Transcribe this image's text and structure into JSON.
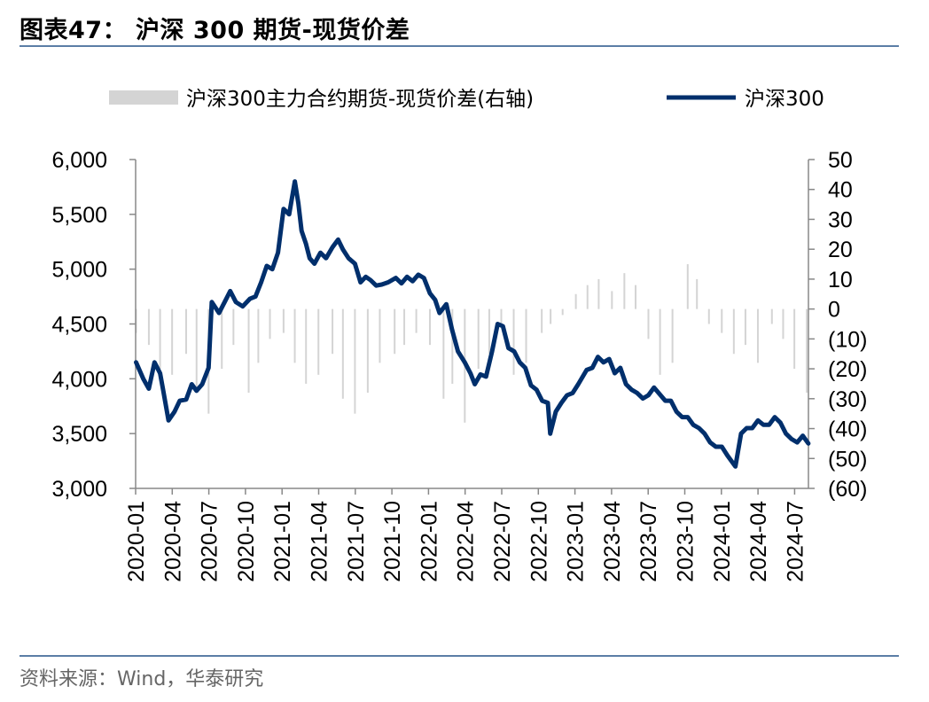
{
  "title": "图表47：  沪深 300 期货-现货价差",
  "source": "资料来源：Wind，华泰研究",
  "colors": {
    "line": "#002f6c",
    "bars": "#d4d4d4",
    "rule": "#5b7ea6",
    "axis": "#888888"
  },
  "chart_data": {
    "type": "line+bar",
    "legend_position": "top",
    "grid": false,
    "x_tick_labels": [
      "2020-01",
      "2020-04",
      "2020-07",
      "2020-10",
      "2021-01",
      "2021-04",
      "2021-07",
      "2021-10",
      "2022-01",
      "2022-04",
      "2022-07",
      "2022-10",
      "2023-01",
      "2023-04",
      "2023-07",
      "2023-10",
      "2024-01",
      "2024-04",
      "2024-07"
    ],
    "y_left": {
      "lim": [
        3000,
        6000
      ],
      "ticks": [
        3000,
        3500,
        4000,
        4500,
        5000,
        5500,
        6000
      ],
      "tick_labels": [
        "3,000",
        "3,500",
        "4,000",
        "4,500",
        "5,000",
        "5,500",
        "6,000"
      ]
    },
    "y_right": {
      "lim": [
        -60,
        50
      ],
      "ticks": [
        50,
        40,
        30,
        20,
        10,
        0,
        -10,
        -20,
        -30,
        -40,
        -50,
        -60
      ],
      "tick_labels": [
        "50",
        "40",
        "30",
        "20",
        "10",
        "0",
        "(10)",
        "(20)",
        "(30)",
        "(40)",
        "(50)",
        "(60)"
      ]
    },
    "series": [
      {
        "name": "沪深300主力合约期货-现货价差(右轴)",
        "kind": "bar",
        "axis": "right",
        "x": [
          "2020-01-02",
          "2020-02-03",
          "2020-03-02",
          "2020-04-01",
          "2020-05-06",
          "2020-06-01",
          "2020-07-01",
          "2020-08-03",
          "2020-09-01",
          "2020-10-09",
          "2020-11-02",
          "2020-12-01",
          "2021-01-04",
          "2021-02-01",
          "2021-03-01",
          "2021-04-01",
          "2021-05-06",
          "2021-06-01",
          "2021-07-01",
          "2021-08-02",
          "2021-09-01",
          "2021-10-08",
          "2021-11-01",
          "2021-12-01",
          "2022-01-04",
          "2022-02-07",
          "2022-03-01",
          "2022-04-01",
          "2022-05-05",
          "2022-06-01",
          "2022-07-01",
          "2022-08-01",
          "2022-09-01",
          "2022-10-10",
          "2022-11-01",
          "2022-12-01",
          "2023-01-03",
          "2023-02-01",
          "2023-03-01",
          "2023-04-03",
          "2023-05-04",
          "2023-06-01",
          "2023-07-03",
          "2023-08-01",
          "2023-09-01",
          "2023-10-09",
          "2023-11-01",
          "2023-12-01",
          "2024-01-02",
          "2024-02-01",
          "2024-03-01",
          "2024-04-01",
          "2024-05-06",
          "2024-06-03",
          "2024-07-01",
          "2024-08-01"
        ],
        "values": [
          -8,
          -12,
          -20,
          -22,
          -15,
          -28,
          -35,
          -20,
          -12,
          -28,
          -18,
          -10,
          -8,
          -18,
          -25,
          -22,
          -15,
          -30,
          -35,
          -28,
          -18,
          -15,
          -12,
          -8,
          -12,
          -30,
          -25,
          -38,
          -20,
          -15,
          -5,
          -22,
          -18,
          -8,
          -5,
          -2,
          5,
          8,
          10,
          6,
          12,
          8,
          -10,
          -22,
          -18,
          15,
          10,
          -5,
          -8,
          -15,
          -12,
          -18,
          -5,
          -10,
          -20,
          -28
        ]
      },
      {
        "name": "沪深300",
        "kind": "line",
        "axis": "left",
        "x": [
          "2020-01-02",
          "2020-01-20",
          "2020-02-03",
          "2020-02-17",
          "2020-03-02",
          "2020-03-10",
          "2020-03-23",
          "2020-04-07",
          "2020-04-20",
          "2020-05-06",
          "2020-05-20",
          "2020-06-01",
          "2020-06-15",
          "2020-07-01",
          "2020-07-09",
          "2020-07-27",
          "2020-08-10",
          "2020-08-24",
          "2020-09-07",
          "2020-09-24",
          "2020-10-12",
          "2020-10-26",
          "2020-11-09",
          "2020-11-23",
          "2020-12-07",
          "2020-12-21",
          "2021-01-04",
          "2021-01-18",
          "2021-02-01",
          "2021-02-10",
          "2021-02-18",
          "2021-03-01",
          "2021-03-10",
          "2021-03-22",
          "2021-04-06",
          "2021-04-20",
          "2021-05-06",
          "2021-05-20",
          "2021-06-01",
          "2021-06-15",
          "2021-07-01",
          "2021-07-15",
          "2021-07-28",
          "2021-08-09",
          "2021-08-23",
          "2021-09-06",
          "2021-09-22",
          "2021-10-11",
          "2021-10-25",
          "2021-11-08",
          "2021-11-22",
          "2021-12-06",
          "2021-12-20",
          "2022-01-04",
          "2022-01-17",
          "2022-01-28",
          "2022-02-14",
          "2022-02-28",
          "2022-03-15",
          "2022-04-01",
          "2022-04-15",
          "2022-04-26",
          "2022-05-10",
          "2022-05-24",
          "2022-06-08",
          "2022-06-22",
          "2022-07-05",
          "2022-07-19",
          "2022-08-02",
          "2022-08-16",
          "2022-08-30",
          "2022-09-13",
          "2022-09-27",
          "2022-10-11",
          "2022-10-25",
          "2022-10-31",
          "2022-11-14",
          "2022-11-28",
          "2022-12-12",
          "2022-12-26",
          "2023-01-09",
          "2023-01-30",
          "2023-02-13",
          "2023-02-27",
          "2023-03-13",
          "2023-03-27",
          "2023-04-10",
          "2023-04-24",
          "2023-05-08",
          "2023-05-22",
          "2023-06-05",
          "2023-06-19",
          "2023-07-03",
          "2023-07-17",
          "2023-07-31",
          "2023-08-14",
          "2023-08-28",
          "2023-09-11",
          "2023-09-25",
          "2023-10-09",
          "2023-10-23",
          "2023-11-06",
          "2023-11-20",
          "2023-12-04",
          "2023-12-18",
          "2024-01-02",
          "2024-01-16",
          "2024-02-05",
          "2024-02-19",
          "2024-03-04",
          "2024-03-18",
          "2024-04-01",
          "2024-04-15",
          "2024-04-29",
          "2024-05-13",
          "2024-05-27",
          "2024-06-10",
          "2024-06-24",
          "2024-07-08",
          "2024-07-22",
          "2024-08-05"
        ],
        "values": [
          4150,
          4000,
          3910,
          4150,
          4050,
          3890,
          3620,
          3700,
          3800,
          3810,
          3950,
          3890,
          3950,
          4100,
          4700,
          4600,
          4700,
          4800,
          4700,
          4660,
          4730,
          4750,
          4880,
          5030,
          5000,
          5150,
          5550,
          5500,
          5800,
          5600,
          5350,
          5230,
          5100,
          5050,
          5150,
          5100,
          5200,
          5270,
          5180,
          5100,
          5050,
          4880,
          4930,
          4900,
          4850,
          4860,
          4880,
          4920,
          4870,
          4930,
          4890,
          4950,
          4920,
          4780,
          4720,
          4600,
          4680,
          4450,
          4250,
          4150,
          4050,
          3950,
          4040,
          4020,
          4250,
          4500,
          4480,
          4280,
          4250,
          4150,
          4100,
          3940,
          3900,
          3800,
          3780,
          3500,
          3700,
          3780,
          3850,
          3870,
          3950,
          4080,
          4100,
          4200,
          4150,
          4180,
          4050,
          4100,
          3950,
          3900,
          3870,
          3820,
          3850,
          3920,
          3860,
          3800,
          3800,
          3700,
          3650,
          3650,
          3580,
          3550,
          3500,
          3420,
          3380,
          3380,
          3300,
          3200,
          3500,
          3550,
          3550,
          3620,
          3580,
          3580,
          3650,
          3600,
          3500,
          3450,
          3420,
          3480,
          3410
        ]
      }
    ]
  }
}
